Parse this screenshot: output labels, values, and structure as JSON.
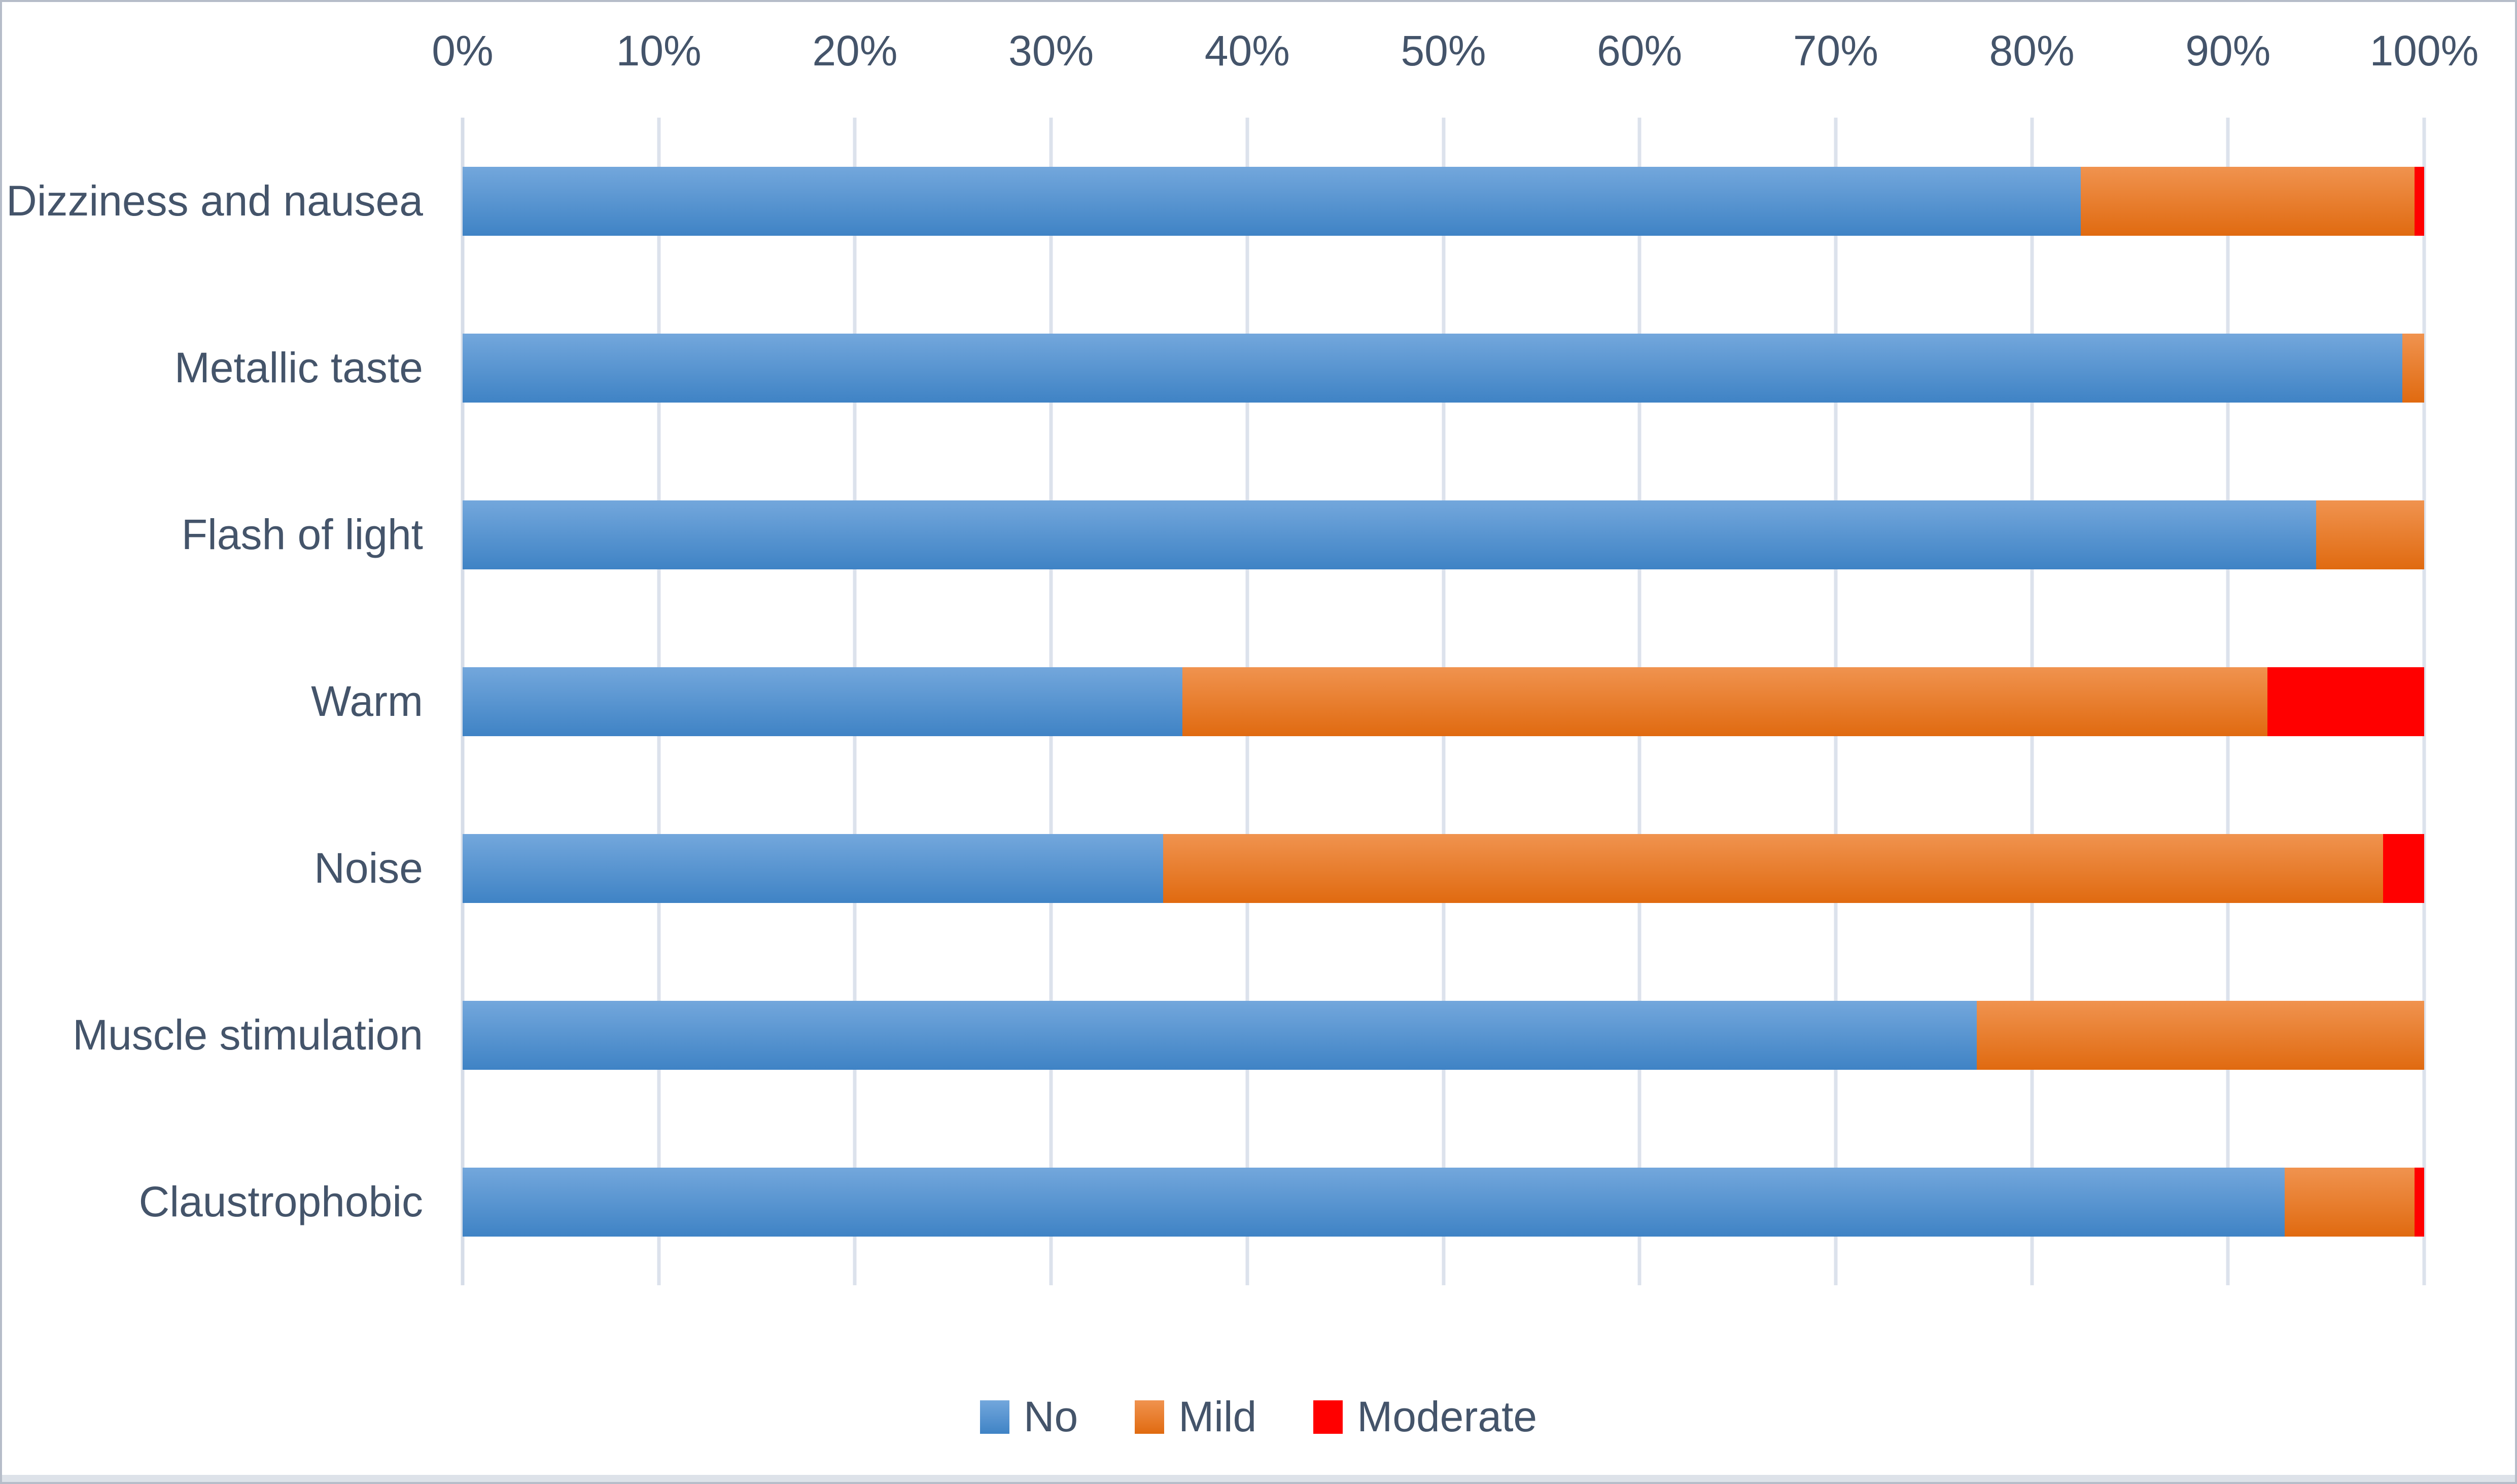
{
  "chart_data": {
    "type": "bar",
    "variant": "horizontal-stacked-100pct",
    "title": "",
    "categories": [
      "Dizziness and nausea",
      "Metallic taste",
      "Flash of light",
      "Warm",
      "Noise",
      "Muscle stimulation",
      "Claustrophobic"
    ],
    "series": [
      {
        "name": "No",
        "color": "#5B9BD5",
        "gradient": {
          "top": "#73A7DC",
          "bottom": "#3F83C5"
        },
        "values": [
          82.5,
          98.9,
          94.5,
          36.7,
          35.7,
          77.2,
          92.9
        ]
      },
      {
        "name": "Mild",
        "color": "#ED7D31",
        "gradient": {
          "top": "#F0934F",
          "bottom": "#E06A10"
        },
        "values": [
          17.0,
          1.1,
          5.5,
          55.3,
          62.2,
          22.8,
          6.6
        ]
      },
      {
        "name": "Moderate",
        "color": "#FF0000",
        "gradient": {
          "top": "#FF0000",
          "bottom": "#FF0000"
        },
        "values": [
          0.5,
          0.0,
          0.0,
          8.0,
          2.1,
          0.0,
          0.5
        ]
      }
    ],
    "x_axis": {
      "position": "top",
      "min": 0,
      "max": 100,
      "tick_step": 10,
      "ticks": [
        "0%",
        "10%",
        "20%",
        "30%",
        "40%",
        "50%",
        "60%",
        "70%",
        "80%",
        "90%",
        "100%"
      ]
    },
    "grid": true,
    "legend": {
      "position": "bottom",
      "entries": [
        "No",
        "Mild",
        "Moderate"
      ]
    }
  },
  "style_colors": {
    "text": "#44546A",
    "gridline": "#DCE2EC",
    "axis_line": "#D6DDE8",
    "frame_border": "#B6BDC9",
    "bottom_strip": "#DDE2E9",
    "background": "#FFFFFF"
  }
}
